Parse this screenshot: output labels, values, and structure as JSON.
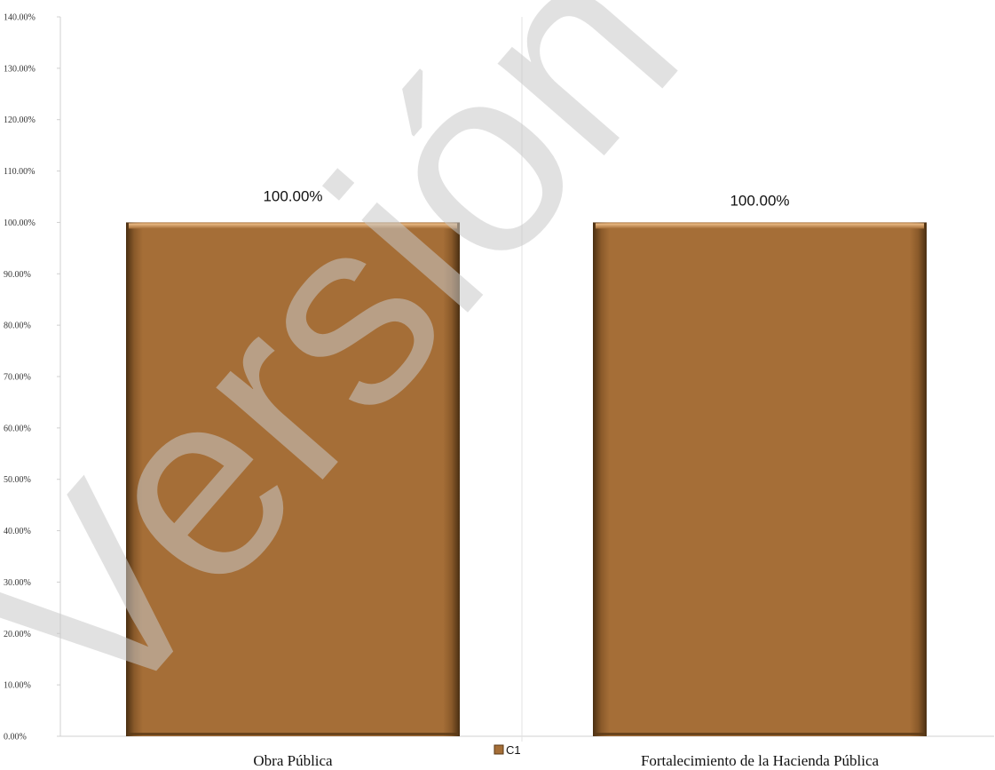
{
  "chart_data": {
    "type": "bar",
    "categories": [
      "Obra Pública",
      "Fortalecimiento de la Hacienda Pública"
    ],
    "series": [
      {
        "name": "C1",
        "values": [
          100.0,
          100.0
        ]
      }
    ],
    "data_labels": [
      "100.00%",
      "100.00%"
    ],
    "y_ticks": [
      "0.00%",
      "10.00%",
      "20.00%",
      "30.00%",
      "40.00%",
      "50.00%",
      "60.00%",
      "70.00%",
      "80.00%",
      "90.00%",
      "100.00%",
      "110.00%",
      "120.00%",
      "130.00%",
      "140.00%"
    ],
    "ylim": [
      0,
      140
    ],
    "y_unit": "percent",
    "title": "",
    "xlabel": "",
    "ylabel": "",
    "grid": false,
    "legend_position": "bottom-center",
    "colors": {
      "bar": "#a56e37",
      "bar_dark": "#5a3a17",
      "bar_light": "#d9a46a",
      "axis": "#d0d0d0"
    }
  },
  "watermark": "Versión Pública"
}
